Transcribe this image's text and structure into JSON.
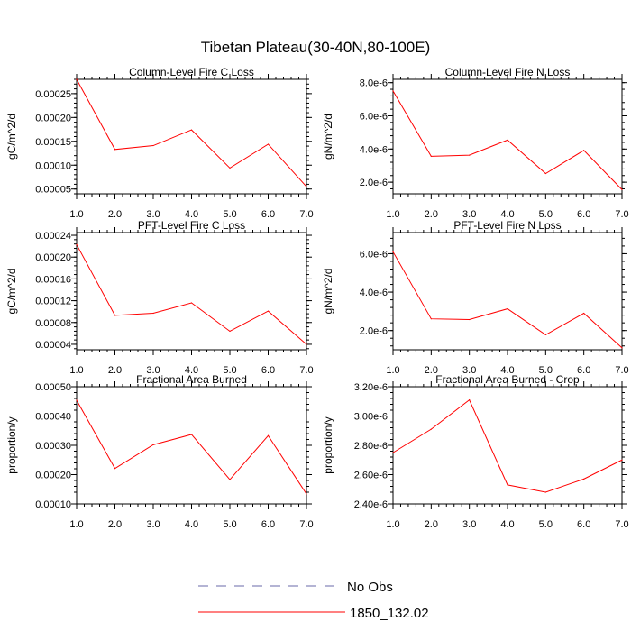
{
  "page_title": "Tibetan Plateau(30-40N,80-100E)",
  "legend": {
    "position": "bottom-center",
    "entries": [
      {
        "label": "No Obs",
        "color": "#6a6aa8",
        "dash": "dashed"
      },
      {
        "label": "1850_132.02",
        "color": "#ff0000",
        "dash": "solid"
      }
    ]
  },
  "chart_data": [
    {
      "type": "line",
      "title": "Column-Level Fire C Loss",
      "ylabel": "gC/m^2/d",
      "x": [
        1,
        2,
        3,
        4,
        5,
        6,
        7
      ],
      "xticks": [
        "1.0",
        "2.0",
        "3.0",
        "4.0",
        "5.0",
        "6.0",
        "7.0"
      ],
      "xlim": [
        1,
        7
      ],
      "ylim": [
        4e-05,
        0.00028
      ],
      "yticks": [
        5e-05,
        0.0001,
        0.00015,
        0.0002,
        0.00025
      ],
      "ytick_labels": [
        "0.00005",
        "0.00010",
        "0.00015",
        "0.00020",
        "0.00025"
      ],
      "series": [
        {
          "name": "1850_132.02",
          "color": "#ff0000",
          "values": [
            0.00028,
            0.000133,
            0.000141,
            0.000174,
            9.4e-05,
            0.000144,
            5.5e-05
          ]
        }
      ]
    },
    {
      "type": "line",
      "title": "Column-Level Fire N Loss",
      "ylabel": "gN/m^2/d",
      "x": [
        1,
        2,
        3,
        4,
        5,
        6,
        7
      ],
      "xticks": [
        "1.0",
        "2.0",
        "3.0",
        "4.0",
        "5.0",
        "6.0",
        "7.0"
      ],
      "xlim": [
        1,
        7
      ],
      "ylim": [
        1.3e-06,
        8.2e-06
      ],
      "yticks": [
        2e-06,
        4e-06,
        6e-06,
        8e-06
      ],
      "ytick_labels": [
        "2.0e-6",
        "4.0e-6",
        "6.0e-6",
        "8.0e-6"
      ],
      "series": [
        {
          "name": "1850_132.02",
          "color": "#ff0000",
          "values": [
            7.5e-06,
            3.56e-06,
            3.63e-06,
            4.54e-06,
            2.52e-06,
            3.92e-06,
            1.55e-06
          ]
        }
      ]
    },
    {
      "type": "line",
      "title": "PFT-Level Fire C Loss",
      "ylabel": "gC/m^2/d",
      "x": [
        1,
        2,
        3,
        4,
        5,
        6,
        7
      ],
      "xticks": [
        "1.0",
        "2.0",
        "3.0",
        "4.0",
        "5.0",
        "6.0",
        "7.0"
      ],
      "xlim": [
        1,
        7
      ],
      "ylim": [
        3e-05,
        0.000245
      ],
      "yticks": [
        4e-05,
        8e-05,
        0.00012,
        0.00016,
        0.0002,
        0.00024
      ],
      "ytick_labels": [
        "0.00004",
        "0.00008",
        "0.00012",
        "0.00016",
        "0.00020",
        "0.00024"
      ],
      "series": [
        {
          "name": "1850_132.02",
          "color": "#ff0000",
          "values": [
            0.000223,
            9.3e-05,
            9.7e-05,
            0.000116,
            6.4e-05,
            0.000101,
            4e-05
          ]
        }
      ]
    },
    {
      "type": "line",
      "title": "PFT-Level Fire N Loss",
      "ylabel": "gN/m^2/d",
      "x": [
        1,
        2,
        3,
        4,
        5,
        6,
        7
      ],
      "xticks": [
        "1.0",
        "2.0",
        "3.0",
        "4.0",
        "5.0",
        "6.0",
        "7.0"
      ],
      "xlim": [
        1,
        7
      ],
      "ylim": [
        1e-06,
        7.1e-06
      ],
      "yticks": [
        2e-06,
        4e-06,
        6e-06
      ],
      "ytick_labels": [
        "2.0e-6",
        "4.0e-6",
        "6.0e-6"
      ],
      "series": [
        {
          "name": "1850_132.02",
          "color": "#ff0000",
          "values": [
            6.1e-06,
            2.61e-06,
            2.57e-06,
            3.13e-06,
            1.78e-06,
            2.9e-06,
            1.1e-06
          ]
        }
      ]
    },
    {
      "type": "line",
      "title": "Fractional Area Burned",
      "ylabel": "proportion/y",
      "x": [
        1,
        2,
        3,
        4,
        5,
        6,
        7
      ],
      "xticks": [
        "1.0",
        "2.0",
        "3.0",
        "4.0",
        "5.0",
        "6.0",
        "7.0"
      ],
      "xlim": [
        1,
        7
      ],
      "ylim": [
        0.0001,
        0.0005
      ],
      "yticks": [
        0.0001,
        0.0002,
        0.0003,
        0.0004,
        0.0005
      ],
      "ytick_labels": [
        "0.00010",
        "0.00020",
        "0.00030",
        "0.00040",
        "0.00050"
      ],
      "series": [
        {
          "name": "1850_132.02",
          "color": "#ff0000",
          "values": [
            0.000454,
            0.000221,
            0.000302,
            0.000337,
            0.000183,
            0.000333,
            0.000134
          ]
        }
      ]
    },
    {
      "type": "line",
      "title": "Fractional Area Burned - Crop",
      "ylabel": "proportion/y",
      "x": [
        1,
        2,
        3,
        4,
        5,
        6,
        7
      ],
      "xticks": [
        "1.0",
        "2.0",
        "3.0",
        "4.0",
        "5.0",
        "6.0",
        "7.0"
      ],
      "xlim": [
        1,
        7
      ],
      "ylim": [
        2.4e-06,
        3.2e-06
      ],
      "yticks": [
        2.4e-06,
        2.6e-06,
        2.8e-06,
        3e-06,
        3.2e-06
      ],
      "ytick_labels": [
        "2.40e-6",
        "2.60e-6",
        "2.80e-6",
        "3.00e-6",
        "3.20e-6"
      ],
      "series": [
        {
          "name": "1850_132.02",
          "color": "#ff0000",
          "values": [
            2.75e-06,
            2.91e-06,
            3.11e-06,
            2.53e-06,
            2.48e-06,
            2.57e-06,
            2.7e-06
          ]
        }
      ]
    }
  ]
}
